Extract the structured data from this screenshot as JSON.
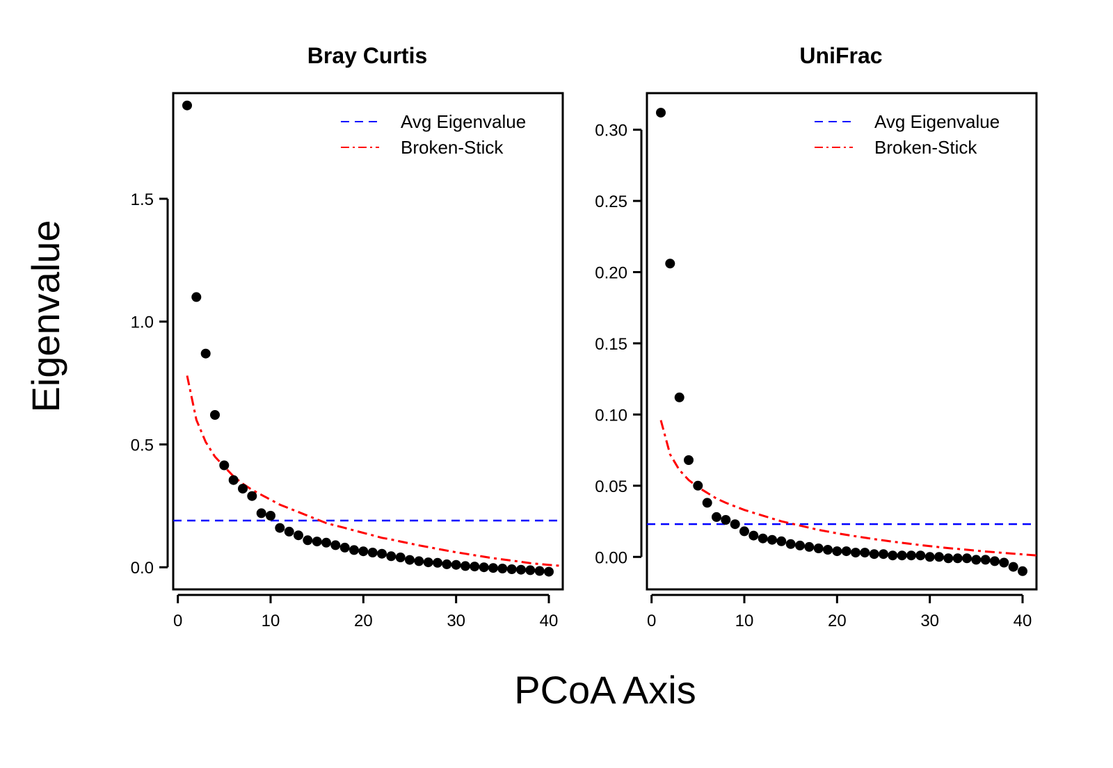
{
  "figure": {
    "ylabel": "Eigenvalue",
    "xlabel": "PCoA Axis"
  },
  "colors": {
    "points": "#000000",
    "avg_line": "#0000ff",
    "broken_stick": "#ff0000",
    "axes": "#000000"
  },
  "chart_data": [
    {
      "type": "scatter",
      "title": "Bray Curtis",
      "xlim": [
        -0.5,
        41.5
      ],
      "ylim": [
        -0.09,
        1.93
      ],
      "xticks": [
        0,
        10,
        20,
        30,
        40
      ],
      "xtick_labels": [
        "0",
        "10",
        "20",
        "30",
        "40"
      ],
      "yticks": [
        0.0,
        0.5,
        1.0,
        1.5
      ],
      "ytick_labels": [
        "0.0",
        "0.5",
        "1.0",
        "1.5"
      ],
      "legend_position": "top-right",
      "legend": [
        {
          "label": "Avg Eigenvalue",
          "style": "dashed",
          "color": "#0000ff"
        },
        {
          "label": "Broken-Stick",
          "style": "dotdash",
          "color": "#ff0000"
        }
      ],
      "series": [
        {
          "kind": "points",
          "x": [
            1,
            2,
            3,
            4,
            5,
            6,
            7,
            8,
            9,
            10,
            11,
            12,
            13,
            14,
            15,
            16,
            17,
            18,
            19,
            20,
            21,
            22,
            23,
            24,
            25,
            26,
            27,
            28,
            29,
            30,
            31,
            32,
            33,
            34,
            35,
            36,
            37,
            38,
            39,
            40
          ],
          "values": [
            1.88,
            1.1,
            0.87,
            0.62,
            0.415,
            0.355,
            0.32,
            0.29,
            0.22,
            0.21,
            0.16,
            0.145,
            0.13,
            0.11,
            0.105,
            0.1,
            0.09,
            0.08,
            0.07,
            0.065,
            0.06,
            0.055,
            0.045,
            0.04,
            0.03,
            0.025,
            0.02,
            0.018,
            0.012,
            0.01,
            0.005,
            0.003,
            0.0,
            -0.003,
            -0.005,
            -0.008,
            -0.01,
            -0.012,
            -0.015,
            -0.018
          ]
        },
        {
          "kind": "hline",
          "legend_index": 0,
          "y": 0.19
        },
        {
          "kind": "curve",
          "legend_index": 1,
          "x": [
            1,
            2,
            3,
            4,
            5,
            6,
            7,
            8,
            9,
            10,
            11,
            12,
            13,
            14,
            15,
            16,
            17,
            18,
            19,
            20,
            21,
            22,
            23,
            24,
            25,
            26,
            27,
            28,
            29,
            30,
            31,
            32,
            33,
            34,
            35,
            36,
            37,
            38,
            39,
            40,
            41.5
          ],
          "values": [
            0.78,
            0.6,
            0.51,
            0.45,
            0.41,
            0.37,
            0.34,
            0.315,
            0.295,
            0.275,
            0.255,
            0.24,
            0.225,
            0.21,
            0.195,
            0.18,
            0.17,
            0.16,
            0.15,
            0.14,
            0.13,
            0.12,
            0.113,
            0.105,
            0.097,
            0.089,
            0.082,
            0.075,
            0.068,
            0.061,
            0.055,
            0.049,
            0.043,
            0.037,
            0.032,
            0.027,
            0.022,
            0.017,
            0.013,
            0.01,
            0.005
          ]
        }
      ]
    },
    {
      "type": "scatter",
      "title": "UniFrac",
      "xlim": [
        -0.5,
        41.5
      ],
      "ylim": [
        -0.0228,
        0.3257
      ],
      "xticks": [
        0,
        10,
        20,
        30,
        40
      ],
      "xtick_labels": [
        "0",
        "10",
        "20",
        "30",
        "40"
      ],
      "yticks": [
        0.0,
        0.05,
        0.1,
        0.15,
        0.2,
        0.25,
        0.3
      ],
      "ytick_labels": [
        "0.00",
        "0.05",
        "0.10",
        "0.15",
        "0.20",
        "0.25",
        "0.30"
      ],
      "legend_position": "top-right",
      "legend": [
        {
          "label": "Avg Eigenvalue",
          "style": "dashed",
          "color": "#0000ff"
        },
        {
          "label": "Broken-Stick",
          "style": "dotdash",
          "color": "#ff0000"
        }
      ],
      "series": [
        {
          "kind": "points",
          "x": [
            1,
            2,
            3,
            4,
            5,
            6,
            7,
            8,
            9,
            10,
            11,
            12,
            13,
            14,
            15,
            16,
            17,
            18,
            19,
            20,
            21,
            22,
            23,
            24,
            25,
            26,
            27,
            28,
            29,
            30,
            31,
            32,
            33,
            34,
            35,
            36,
            37,
            38,
            39,
            40
          ],
          "values": [
            0.312,
            0.206,
            0.112,
            0.068,
            0.05,
            0.038,
            0.028,
            0.026,
            0.023,
            0.018,
            0.015,
            0.013,
            0.012,
            0.011,
            0.009,
            0.008,
            0.007,
            0.006,
            0.005,
            0.004,
            0.004,
            0.003,
            0.003,
            0.002,
            0.002,
            0.001,
            0.001,
            0.001,
            0.001,
            0.0,
            0.0,
            -0.001,
            -0.001,
            -0.001,
            -0.002,
            -0.002,
            -0.003,
            -0.004,
            -0.007,
            -0.01
          ]
        },
        {
          "kind": "hline",
          "legend_index": 0,
          "y": 0.023
        },
        {
          "kind": "curve",
          "legend_index": 1,
          "x": [
            1,
            2,
            3,
            4,
            5,
            6,
            7,
            8,
            9,
            10,
            11,
            12,
            13,
            14,
            15,
            16,
            17,
            18,
            19,
            20,
            21,
            22,
            23,
            24,
            25,
            26,
            27,
            28,
            29,
            30,
            31,
            32,
            33,
            34,
            35,
            36,
            37,
            38,
            39,
            40,
            41.5
          ],
          "values": [
            0.096,
            0.072,
            0.061,
            0.054,
            0.049,
            0.045,
            0.041,
            0.038,
            0.0355,
            0.033,
            0.031,
            0.029,
            0.027,
            0.025,
            0.0235,
            0.022,
            0.0205,
            0.019,
            0.0178,
            0.0166,
            0.0155,
            0.0145,
            0.0135,
            0.0125,
            0.0116,
            0.0107,
            0.0099,
            0.0091,
            0.0083,
            0.0076,
            0.0069,
            0.0062,
            0.0056,
            0.005,
            0.0044,
            0.0038,
            0.0033,
            0.0028,
            0.0023,
            0.0018,
            0.001
          ]
        }
      ]
    }
  ]
}
